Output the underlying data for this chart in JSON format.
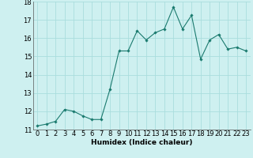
{
  "x": [
    0,
    1,
    2,
    3,
    4,
    5,
    6,
    7,
    8,
    9,
    10,
    11,
    12,
    13,
    14,
    15,
    16,
    17,
    18,
    19,
    20,
    21,
    22,
    23
  ],
  "y": [
    11.2,
    11.3,
    11.45,
    12.1,
    12.0,
    11.75,
    11.55,
    11.55,
    13.2,
    15.3,
    15.3,
    16.4,
    15.9,
    16.3,
    16.5,
    17.7,
    16.5,
    17.25,
    14.85,
    15.9,
    16.2,
    15.4,
    15.5,
    15.3
  ],
  "line_color": "#1a7a6e",
  "marker": "D",
  "marker_size": 1.8,
  "line_width": 0.8,
  "bg_color": "#cef0f0",
  "grid_color": "#aadddd",
  "xlabel": "Humidex (Indice chaleur)",
  "xlabel_fontsize": 6.5,
  "tick_fontsize": 6,
  "ylim": [
    11,
    18
  ],
  "xlim": [
    -0.5,
    23.5
  ],
  "yticks": [
    11,
    12,
    13,
    14,
    15,
    16,
    17,
    18
  ],
  "xticks": [
    0,
    1,
    2,
    3,
    4,
    5,
    6,
    7,
    8,
    9,
    10,
    11,
    12,
    13,
    14,
    15,
    16,
    17,
    18,
    19,
    20,
    21,
    22,
    23
  ]
}
